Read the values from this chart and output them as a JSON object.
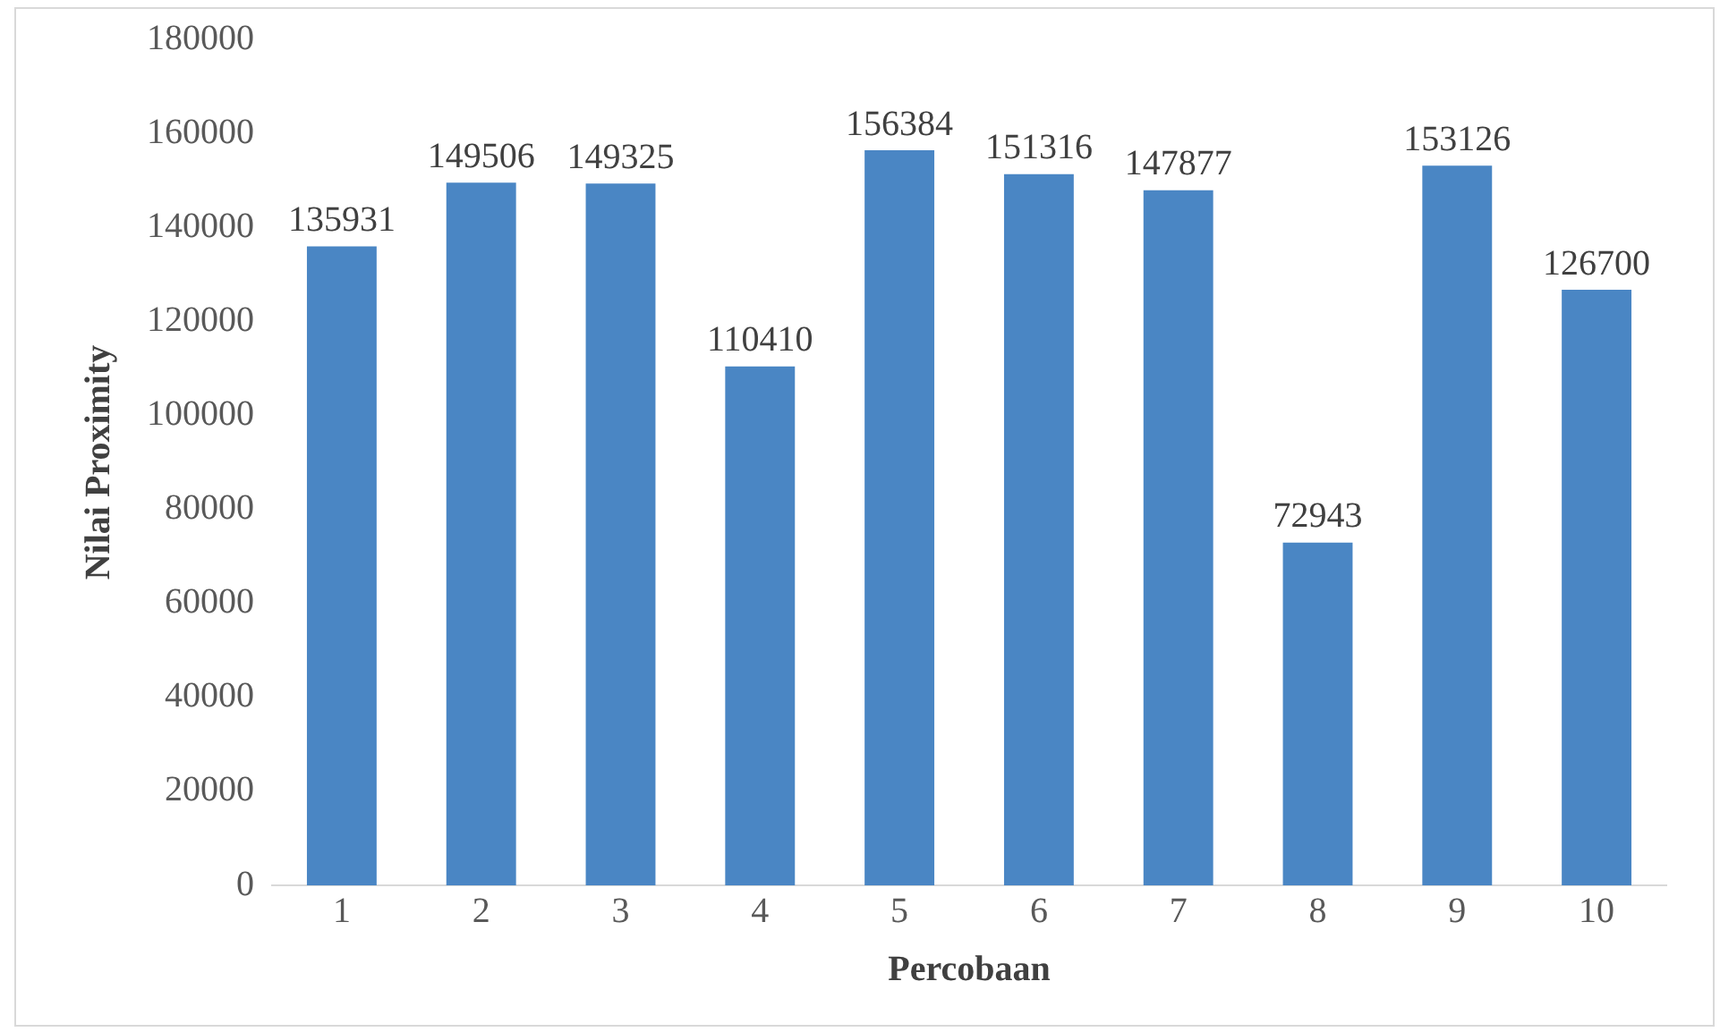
{
  "chart_data": {
    "type": "bar",
    "xlabel": "Percobaan",
    "ylabel": "Nilai Proximity",
    "categories": [
      "1",
      "2",
      "3",
      "4",
      "5",
      "6",
      "7",
      "8",
      "9",
      "10"
    ],
    "values": [
      135931,
      149506,
      149325,
      110410,
      156384,
      151316,
      147877,
      72943,
      153126,
      126700
    ],
    "color": "#4a86c4",
    "ylim": [
      0,
      180000
    ],
    "yticks": [
      0,
      20000,
      40000,
      60000,
      80000,
      100000,
      120000,
      140000,
      160000,
      180000
    ],
    "grid": false,
    "legend": false,
    "data_labels": true
  }
}
